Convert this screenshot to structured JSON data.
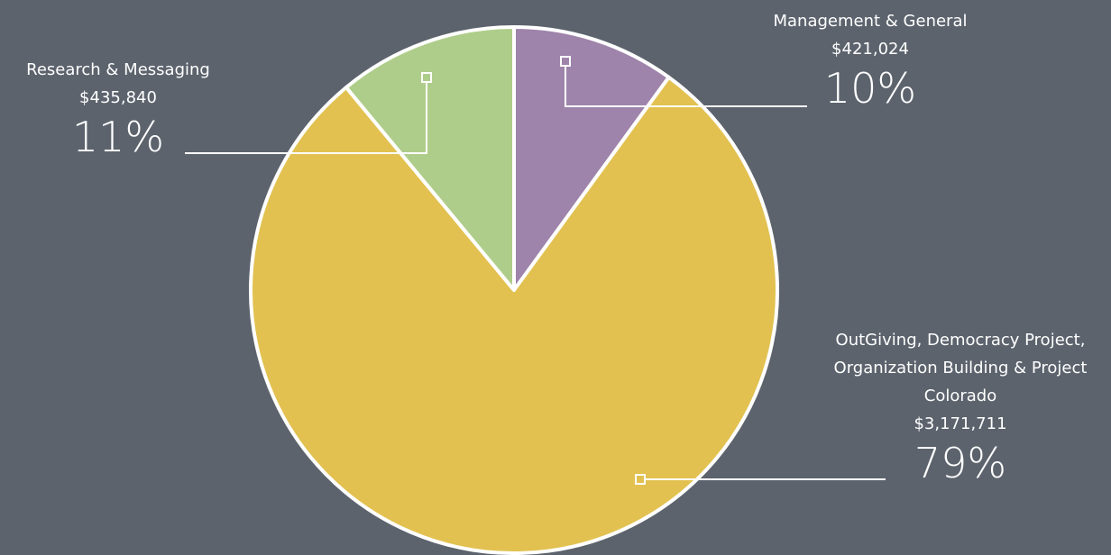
{
  "chart_data": {
    "type": "pie",
    "categories": [
      "Management & General",
      "OutGiving, Democracy Project, Organization Building & Project Colorado",
      "Research & Messaging"
    ],
    "amounts": [
      "$421,024",
      "$3,171,711",
      "$435,840"
    ],
    "values": [
      10,
      79,
      11
    ],
    "value_labels": [
      "10%",
      "79%",
      "11%"
    ],
    "colors": [
      "#9e84aa",
      "#e2c150",
      "#afcd8a"
    ]
  }
}
